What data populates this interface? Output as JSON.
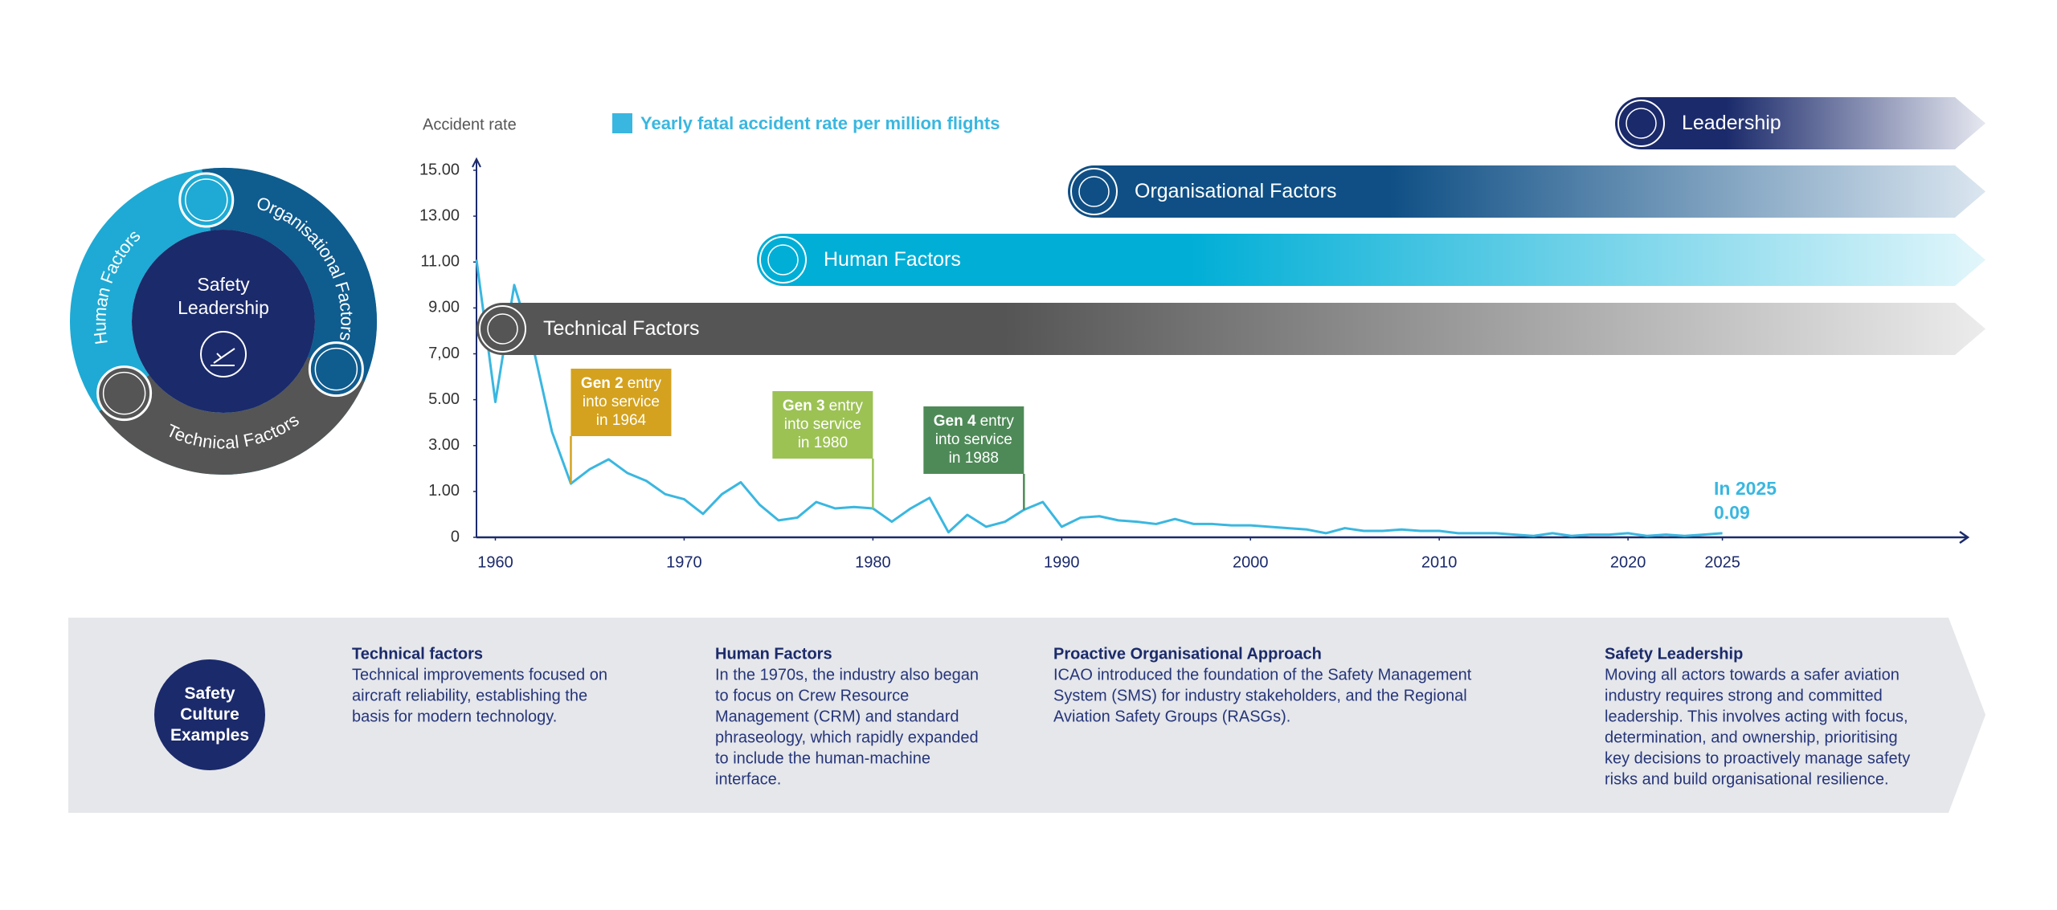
{
  "diagram": {
    "center": "Safety Leadership",
    "segments": [
      "Human Factors",
      "Organisational Factors",
      "Technical Factors"
    ]
  },
  "chart_data": {
    "type": "line",
    "y_axis_label": "Accident rate",
    "x": [
      1959,
      1960,
      1961,
      1962,
      1963,
      1964,
      1965,
      1966,
      1967,
      1968,
      1969,
      1970,
      1971,
      1972,
      1973,
      1974,
      1975,
      1976,
      1977,
      1978,
      1979,
      1980,
      1981,
      1982,
      1983,
      1984,
      1985,
      1986,
      1987,
      1988,
      1989,
      1990,
      1991,
      1992,
      1993,
      1994,
      1995,
      1996,
      1997,
      1998,
      1999,
      2000,
      2001,
      2002,
      2003,
      2004,
      2005,
      2006,
      2007,
      2008,
      2009,
      2010,
      2011,
      2012,
      2013,
      2014,
      2015,
      2016,
      2017,
      2018,
      2019,
      2020,
      2021,
      2022,
      2023,
      2024,
      2025
    ],
    "series": [
      {
        "name": "Yearly fatal accident rate per million flights",
        "color": "#3ab7e0",
        "values": [
          11.1,
          4.9,
          10.0,
          7.3,
          3.6,
          1.34,
          1.97,
          2.4,
          1.8,
          1.46,
          0.94,
          0.83,
          0.51,
          0.94,
          1.4,
          0.71,
          0.37,
          0.43,
          0.77,
          0.63,
          0.66,
          0.63,
          0.34,
          0.63,
          0.86,
          0.11,
          0.49,
          0.23,
          0.34,
          0.6,
          0.77,
          0.23,
          0.43,
          0.46,
          0.37,
          0.34,
          0.29,
          0.4,
          0.29,
          0.29,
          0.26,
          0.26,
          0.23,
          0.2,
          0.17,
          0.09,
          0.2,
          0.14,
          0.14,
          0.17,
          0.14,
          0.14,
          0.09,
          0.09,
          0.09,
          0.06,
          0.03,
          0.09,
          0.03,
          0.06,
          0.06,
          0.09,
          0.03,
          0.06,
          0.03,
          0.06,
          0.09
        ]
      }
    ],
    "xlim": [
      1959,
      2038
    ],
    "ylim": [
      0,
      15
    ],
    "xticks": [
      1960,
      1970,
      1980,
      1990,
      2000,
      2010,
      2020,
      2025
    ],
    "yticks": [
      0,
      {
        "value": 1,
        "label": "1.00"
      },
      {
        "value": 3,
        "label": "3.00"
      },
      {
        "value": 5,
        "label": "5.00"
      },
      {
        "value": 7,
        "label": "7,00"
      },
      {
        "value": 9,
        "label": "9.00"
      },
      {
        "value": 11,
        "label": "11.00"
      },
      {
        "value": 13,
        "label": "13.00"
      },
      {
        "value": 15,
        "label": "15.00"
      }
    ],
    "annotation": {
      "label": "In 2025",
      "value": 0.09
    },
    "milestones": [
      {
        "title": "Gen 2",
        "lines": [
          "entry",
          "into service",
          "in 1964"
        ],
        "year": 1964,
        "color": "#d4a21e"
      },
      {
        "title": "Gen 3",
        "lines": [
          "entry",
          "into service",
          "in 1980"
        ],
        "year": 1980,
        "color": "#9cc254"
      },
      {
        "title": "Gen 4",
        "lines": [
          "entry",
          "into service",
          "in 1988"
        ],
        "year": 1988,
        "color": "#4e8a57"
      }
    ],
    "bands": [
      {
        "label": "Leadership",
        "color": "#1b2a6b"
      },
      {
        "label": "Organisational Factors",
        "color": "#0f4f85"
      },
      {
        "label": "Human Factors",
        "color": "#00aed6"
      },
      {
        "label": "Technical Factors",
        "color": "#555555"
      }
    ]
  },
  "examples": {
    "title": "Safety Culture Examples",
    "items": [
      {
        "heading": "Technical factors",
        "lines": [
          "Technical improvements focused on",
          "aircraft reliability, establishing the",
          "basis for modern technology."
        ]
      },
      {
        "heading": "Human Factors",
        "lines": [
          "In the 1970s, the industry also began",
          "to focus on Crew Resource",
          "Management (CRM) and standard",
          "phraseology, which rapidly expanded",
          "to include the human-machine",
          "interface."
        ]
      },
      {
        "heading": "Proactive Organisational Approach",
        "lines": [
          "ICAO introduced the foundation of the Safety Management",
          "System (SMS) for industry stakeholders, and the Regional",
          "Aviation Safety Groups (RASGs)."
        ]
      },
      {
        "heading": "Safety Leadership",
        "lines": [
          "Moving all actors towards a safer aviation",
          "industry  requires strong and committed",
          "leadership. This involves acting with focus,",
          "determination, and ownership, prioritising",
          "key decisions to proactively manage safety",
          "risks and build organisational resilience."
        ]
      }
    ]
  }
}
